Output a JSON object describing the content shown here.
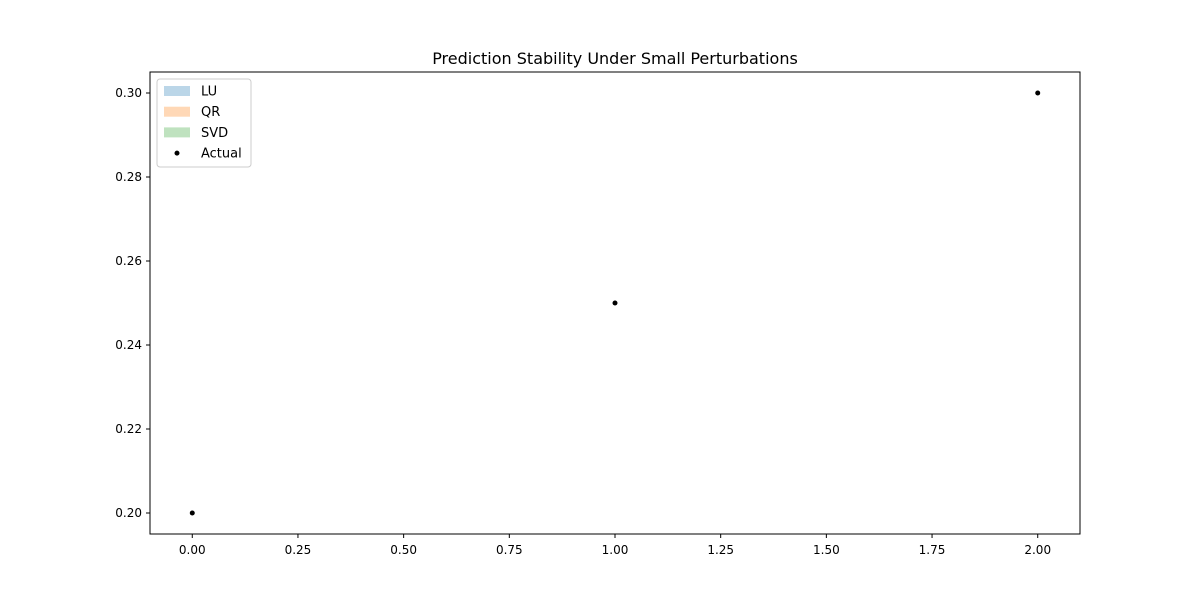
{
  "chart_data": {
    "type": "scatter",
    "title": "Prediction Stability Under Small Perturbations",
    "xlabel": "",
    "ylabel": "",
    "xlim": [
      -0.1,
      2.1
    ],
    "ylim": [
      0.195,
      0.305
    ],
    "xticks": [
      0.0,
      0.25,
      0.5,
      0.75,
      1.0,
      1.25,
      1.5,
      1.75,
      2.0
    ],
    "xtick_labels": [
      "0.00",
      "0.25",
      "0.50",
      "0.75",
      "1.00",
      "1.25",
      "1.50",
      "1.75",
      "2.00"
    ],
    "yticks": [
      0.2,
      0.22,
      0.24,
      0.26,
      0.28,
      0.3
    ],
    "ytick_labels": [
      "0.20",
      "0.22",
      "0.24",
      "0.26",
      "0.28",
      "0.30"
    ],
    "grid": false,
    "legend_position": "top-left",
    "legend": [
      {
        "label": "LU",
        "kind": "patch",
        "color": "#1f77b4",
        "opacity": 0.3
      },
      {
        "label": "QR",
        "kind": "patch",
        "color": "#ff7f0e",
        "opacity": 0.3
      },
      {
        "label": "SVD",
        "kind": "patch",
        "color": "#2ca02c",
        "opacity": 0.3
      },
      {
        "label": "Actual",
        "kind": "point",
        "color": "#000000"
      }
    ],
    "series": [
      {
        "name": "LU",
        "type": "band",
        "color": "#1f77b4",
        "opacity": 0.3,
        "x": [],
        "y_low": [],
        "y_high": []
      },
      {
        "name": "QR",
        "type": "band",
        "color": "#ff7f0e",
        "opacity": 0.3,
        "x": [],
        "y_low": [],
        "y_high": []
      },
      {
        "name": "SVD",
        "type": "band",
        "color": "#2ca02c",
        "opacity": 0.3,
        "x": [],
        "y_low": [],
        "y_high": []
      },
      {
        "name": "Actual",
        "type": "scatter",
        "color": "#000000",
        "x": [
          0,
          1,
          2
        ],
        "y": [
          0.2,
          0.25,
          0.3
        ]
      }
    ]
  }
}
